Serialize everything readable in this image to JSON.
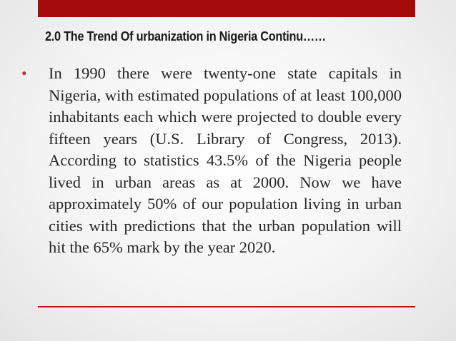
{
  "slide": {
    "title": "2.0 The Trend Of urbanization in Nigeria Continu……",
    "bullet_symbol": "•",
    "body": "In 1990 there were twenty-one state capitals in Nigeria, with estimated populations of at least 100,000 inhabitants each which were projected to double every fifteen years (U.S. Library of Congress, 2013). According to statistics 43.5% of the Nigeria people lived in urban areas as at 2000. Now we have approximately 50% of our population living in urban cities with predictions that the urban population will hit the 65% mark by the year 2020."
  },
  "colors": {
    "accent_bar": "#a50b0b",
    "bullet": "#c0392b",
    "divider": "#b81414"
  }
}
